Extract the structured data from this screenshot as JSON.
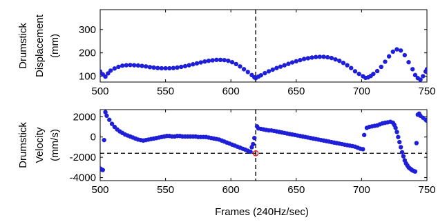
{
  "chart_data": [
    {
      "type": "scatter",
      "title": "",
      "ylabel_lines": [
        "Drumstick",
        "Displacement",
        "(mm)"
      ],
      "xlabel": "",
      "xlim": [
        500,
        750
      ],
      "ylim": [
        75,
        385
      ],
      "x_ticks": [
        500,
        550,
        600,
        650,
        700,
        750
      ],
      "y_ticks": [
        100,
        200,
        300
      ],
      "marker_color": "#1f1fd8",
      "grid": false,
      "vline": {
        "x": 619,
        "style": "dashed"
      },
      "series": [
        {
          "values": [
            [
              500,
              120
            ],
            [
              502,
              108
            ],
            [
              504,
              98
            ],
            [
              506,
              112
            ],
            [
              508,
              124
            ],
            [
              511,
              133
            ],
            [
              514,
              140
            ],
            [
              517,
              145
            ],
            [
              520,
              147
            ],
            [
              523,
              148
            ],
            [
              526,
              147
            ],
            [
              529,
              146
            ],
            [
              532,
              144
            ],
            [
              535,
              142
            ],
            [
              538,
              139
            ],
            [
              541,
              137
            ],
            [
              544,
              135
            ],
            [
              547,
              134
            ],
            [
              550,
              134
            ],
            [
              553,
              134
            ],
            [
              556,
              135
            ],
            [
              559,
              137
            ],
            [
              562,
              140
            ],
            [
              565,
              143
            ],
            [
              568,
              147
            ],
            [
              571,
              151
            ],
            [
              574,
              155
            ],
            [
              577,
              159
            ],
            [
              580,
              163
            ],
            [
              583,
              166
            ],
            [
              586,
              168
            ],
            [
              589,
              170
            ],
            [
              592,
              170
            ],
            [
              595,
              169
            ],
            [
              598,
              166
            ],
            [
              601,
              160
            ],
            [
              604,
              152
            ],
            [
              607,
              142
            ],
            [
              610,
              130
            ],
            [
              613,
              118
            ],
            [
              616,
              105
            ],
            [
              618,
              95
            ],
            [
              619,
              92
            ],
            [
              621,
              98
            ],
            [
              623,
              104
            ],
            [
              626,
              113
            ],
            [
              629,
              121
            ],
            [
              632,
              128
            ],
            [
              635,
              135
            ],
            [
              638,
              141
            ],
            [
              641,
              147
            ],
            [
              644,
              153
            ],
            [
              647,
              159
            ],
            [
              650,
              164
            ],
            [
              653,
              169
            ],
            [
              656,
              174
            ],
            [
              659,
              177
            ],
            [
              662,
              180
            ],
            [
              665,
              182
            ],
            [
              668,
              183
            ],
            [
              671,
              183
            ],
            [
              674,
              181
            ],
            [
              677,
              178
            ],
            [
              680,
              172
            ],
            [
              683,
              166
            ],
            [
              686,
              157
            ],
            [
              689,
              147
            ],
            [
              692,
              135
            ],
            [
              695,
              121
            ],
            [
              698,
              110
            ],
            [
              701,
              100
            ],
            [
              703,
              93
            ],
            [
              705,
              95
            ],
            [
              707,
              101
            ],
            [
              709,
              110
            ],
            [
              712,
              122
            ],
            [
              715,
              140
            ],
            [
              718,
              162
            ],
            [
              721,
              185
            ],
            [
              724,
              205
            ],
            [
              727,
              215
            ],
            [
              730,
              210
            ],
            [
              733,
              190
            ],
            [
              736,
              160
            ],
            [
              739,
              130
            ],
            [
              741,
              105
            ],
            [
              743,
              92
            ],
            [
              745,
              85
            ],
            [
              747,
              100
            ],
            [
              749,
              120
            ],
            [
              750,
              130
            ]
          ]
        }
      ]
    },
    {
      "type": "scatter",
      "title": "",
      "ylabel_lines": [
        "Drumstick",
        "Velocity",
        "(mm/s)"
      ],
      "xlabel": "Frames (240Hz/sec)",
      "xlim": [
        500,
        750
      ],
      "ylim": [
        -4300,
        2700
      ],
      "x_ticks": [
        500,
        550,
        600,
        650,
        700,
        750
      ],
      "y_ticks": [
        -4000,
        -2000,
        0,
        2000
      ],
      "marker_color": "#1f1fd8",
      "grid": false,
      "vline": {
        "x": 619,
        "style": "dashed"
      },
      "hline": {
        "y": -1600,
        "style": "dashed"
      },
      "highlight_point": {
        "x": 619,
        "y": -1600,
        "color": "#e02020"
      },
      "series": [
        {
          "values": [
            [
              500,
              -3100
            ],
            [
              501,
              -3200
            ],
            [
              502,
              -3250
            ],
            [
              503,
              -300
            ],
            [
              504,
              2450
            ],
            [
              505,
              2100
            ],
            [
              507,
              1700
            ],
            [
              509,
              1300
            ],
            [
              511,
              1000
            ],
            [
              513,
              750
            ],
            [
              515,
              550
            ],
            [
              517,
              400
            ],
            [
              519,
              250
            ],
            [
              521,
              150
            ],
            [
              523,
              50
            ],
            [
              525,
              -50
            ],
            [
              527,
              -150
            ],
            [
              529,
              -250
            ],
            [
              531,
              -300
            ],
            [
              533,
              -350
            ],
            [
              535,
              -300
            ],
            [
              537,
              -250
            ],
            [
              539,
              -200
            ],
            [
              541,
              -150
            ],
            [
              543,
              -100
            ],
            [
              545,
              -50
            ],
            [
              547,
              0
            ],
            [
              549,
              50
            ],
            [
              551,
              100
            ],
            [
              553,
              100
            ],
            [
              555,
              50
            ],
            [
              557,
              50
            ],
            [
              559,
              100
            ],
            [
              561,
              100
            ],
            [
              563,
              50
            ],
            [
              565,
              50
            ],
            [
              567,
              50
            ],
            [
              569,
              50
            ],
            [
              571,
              50
            ],
            [
              573,
              50
            ],
            [
              575,
              0
            ],
            [
              577,
              0
            ],
            [
              579,
              0
            ],
            [
              581,
              0
            ],
            [
              583,
              -50
            ],
            [
              585,
              -100
            ],
            [
              587,
              -150
            ],
            [
              589,
              -200
            ],
            [
              591,
              -250
            ],
            [
              593,
              -350
            ],
            [
              595,
              -450
            ],
            [
              597,
              -550
            ],
            [
              599,
              -650
            ],
            [
              601,
              -750
            ],
            [
              603,
              -850
            ],
            [
              605,
              -950
            ],
            [
              607,
              -1050
            ],
            [
              609,
              -1150
            ],
            [
              611,
              -1250
            ],
            [
              613,
              -1350
            ],
            [
              615,
              -1450
            ],
            [
              616,
              -1000
            ],
            [
              617,
              -700
            ],
            [
              618,
              -100
            ],
            [
              620,
              1050
            ],
            [
              621,
              850
            ],
            [
              623,
              800
            ],
            [
              625,
              750
            ],
            [
              627,
              700
            ],
            [
              629,
              650
            ],
            [
              631,
              650
            ],
            [
              633,
              600
            ],
            [
              635,
              550
            ],
            [
              637,
              500
            ],
            [
              639,
              450
            ],
            [
              641,
              400
            ],
            [
              643,
              350
            ],
            [
              645,
              300
            ],
            [
              647,
              250
            ],
            [
              649,
              200
            ],
            [
              651,
              150
            ],
            [
              653,
              100
            ],
            [
              655,
              50
            ],
            [
              657,
              0
            ],
            [
              659,
              -50
            ],
            [
              661,
              -100
            ],
            [
              663,
              -150
            ],
            [
              665,
              -200
            ],
            [
              667,
              -250
            ],
            [
              669,
              -300
            ],
            [
              671,
              -350
            ],
            [
              673,
              -400
            ],
            [
              675,
              -450
            ],
            [
              677,
              -500
            ],
            [
              679,
              -550
            ],
            [
              681,
              -600
            ],
            [
              683,
              -650
            ],
            [
              685,
              -700
            ],
            [
              687,
              -750
            ],
            [
              689,
              -800
            ],
            [
              691,
              -850
            ],
            [
              693,
              -900
            ],
            [
              695,
              -950
            ],
            [
              697,
              -1050
            ],
            [
              699,
              -1150
            ],
            [
              701,
              -1200
            ],
            [
              702,
              200
            ],
            [
              704,
              900
            ],
            [
              706,
              1000
            ],
            [
              708,
              1050
            ],
            [
              710,
              1100
            ],
            [
              712,
              1150
            ],
            [
              714,
              1250
            ],
            [
              716,
              1350
            ],
            [
              718,
              1400
            ],
            [
              720,
              1450
            ],
            [
              722,
              1500
            ],
            [
              724,
              1400
            ],
            [
              725,
              1200
            ],
            [
              726,
              900
            ],
            [
              727,
              500
            ],
            [
              728,
              0
            ],
            [
              729,
              -500
            ],
            [
              730,
              -1000
            ],
            [
              731,
              -1500
            ],
            [
              732,
              -1900
            ],
            [
              733,
              -2300
            ],
            [
              734,
              -2600
            ],
            [
              735,
              -2800
            ],
            [
              736,
              -3000
            ],
            [
              737,
              -3100
            ],
            [
              738,
              -3200
            ],
            [
              739,
              -3300
            ],
            [
              740,
              -3350
            ],
            [
              741,
              -3400
            ],
            [
              742,
              -600
            ],
            [
              743,
              2200
            ],
            [
              744,
              2300
            ],
            [
              745,
              2100
            ],
            [
              747,
              1900
            ],
            [
              749,
              1700
            ],
            [
              750,
              1600
            ]
          ]
        }
      ]
    }
  ]
}
